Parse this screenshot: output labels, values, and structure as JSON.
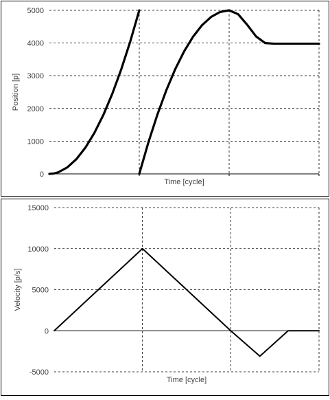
{
  "chart_data": [
    {
      "type": "line",
      "ylabel": "Position [p]",
      "xlabel": "Time [cycle]",
      "ylim": [
        0,
        5000
      ],
      "yticks": [
        0,
        1000,
        2000,
        3000,
        4000,
        5000
      ],
      "ytick_labels": [
        "0",
        "1000",
        "2000",
        "3000",
        "4000",
        "5000"
      ],
      "xlim": [
        0,
        3
      ],
      "x_gridlines": [
        1,
        2,
        3
      ],
      "grid": "dashed",
      "line_color": "#000000",
      "series": [
        {
          "x": [
            0,
            0.05,
            0.1,
            0.2,
            0.3,
            0.4,
            0.5,
            0.6,
            0.7,
            0.8,
            0.9,
            1.0
          ],
          "values": [
            0,
            12,
            50,
            200,
            450,
            800,
            1250,
            1800,
            2450,
            3200,
            4050,
            5000
          ]
        },
        {
          "x": [
            1.0,
            1.1,
            1.2,
            1.3,
            1.4,
            1.5,
            1.6,
            1.7,
            1.8,
            1.9,
            2.0,
            2.1,
            2.2,
            2.3,
            2.4,
            2.5,
            2.6,
            2.7,
            2.8,
            2.9,
            3.0
          ],
          "values": [
            0,
            950,
            1800,
            2550,
            3200,
            3750,
            4200,
            4550,
            4800,
            4950,
            5000,
            4880,
            4560,
            4200,
            4000,
            3980,
            3980,
            3980,
            3980,
            3980,
            3980
          ]
        }
      ]
    },
    {
      "type": "line",
      "ylabel": "Velocity [p/s]",
      "xlabel": "Time [cycle]",
      "ylim": [
        -5000,
        15000
      ],
      "yticks": [
        -5000,
        0,
        5000,
        10000,
        15000
      ],
      "ytick_labels": [
        "-5000",
        "0",
        "5000",
        "10000",
        "15000"
      ],
      "xlim": [
        0,
        3
      ],
      "x_gridlines": [
        1,
        2,
        3
      ],
      "grid": "dashed",
      "line_color": "#000000",
      "series": [
        {
          "x": [
            0,
            1,
            2,
            2.33,
            2.65,
            3
          ],
          "values": [
            0,
            10000,
            0,
            -3100,
            0,
            0
          ]
        }
      ]
    }
  ]
}
